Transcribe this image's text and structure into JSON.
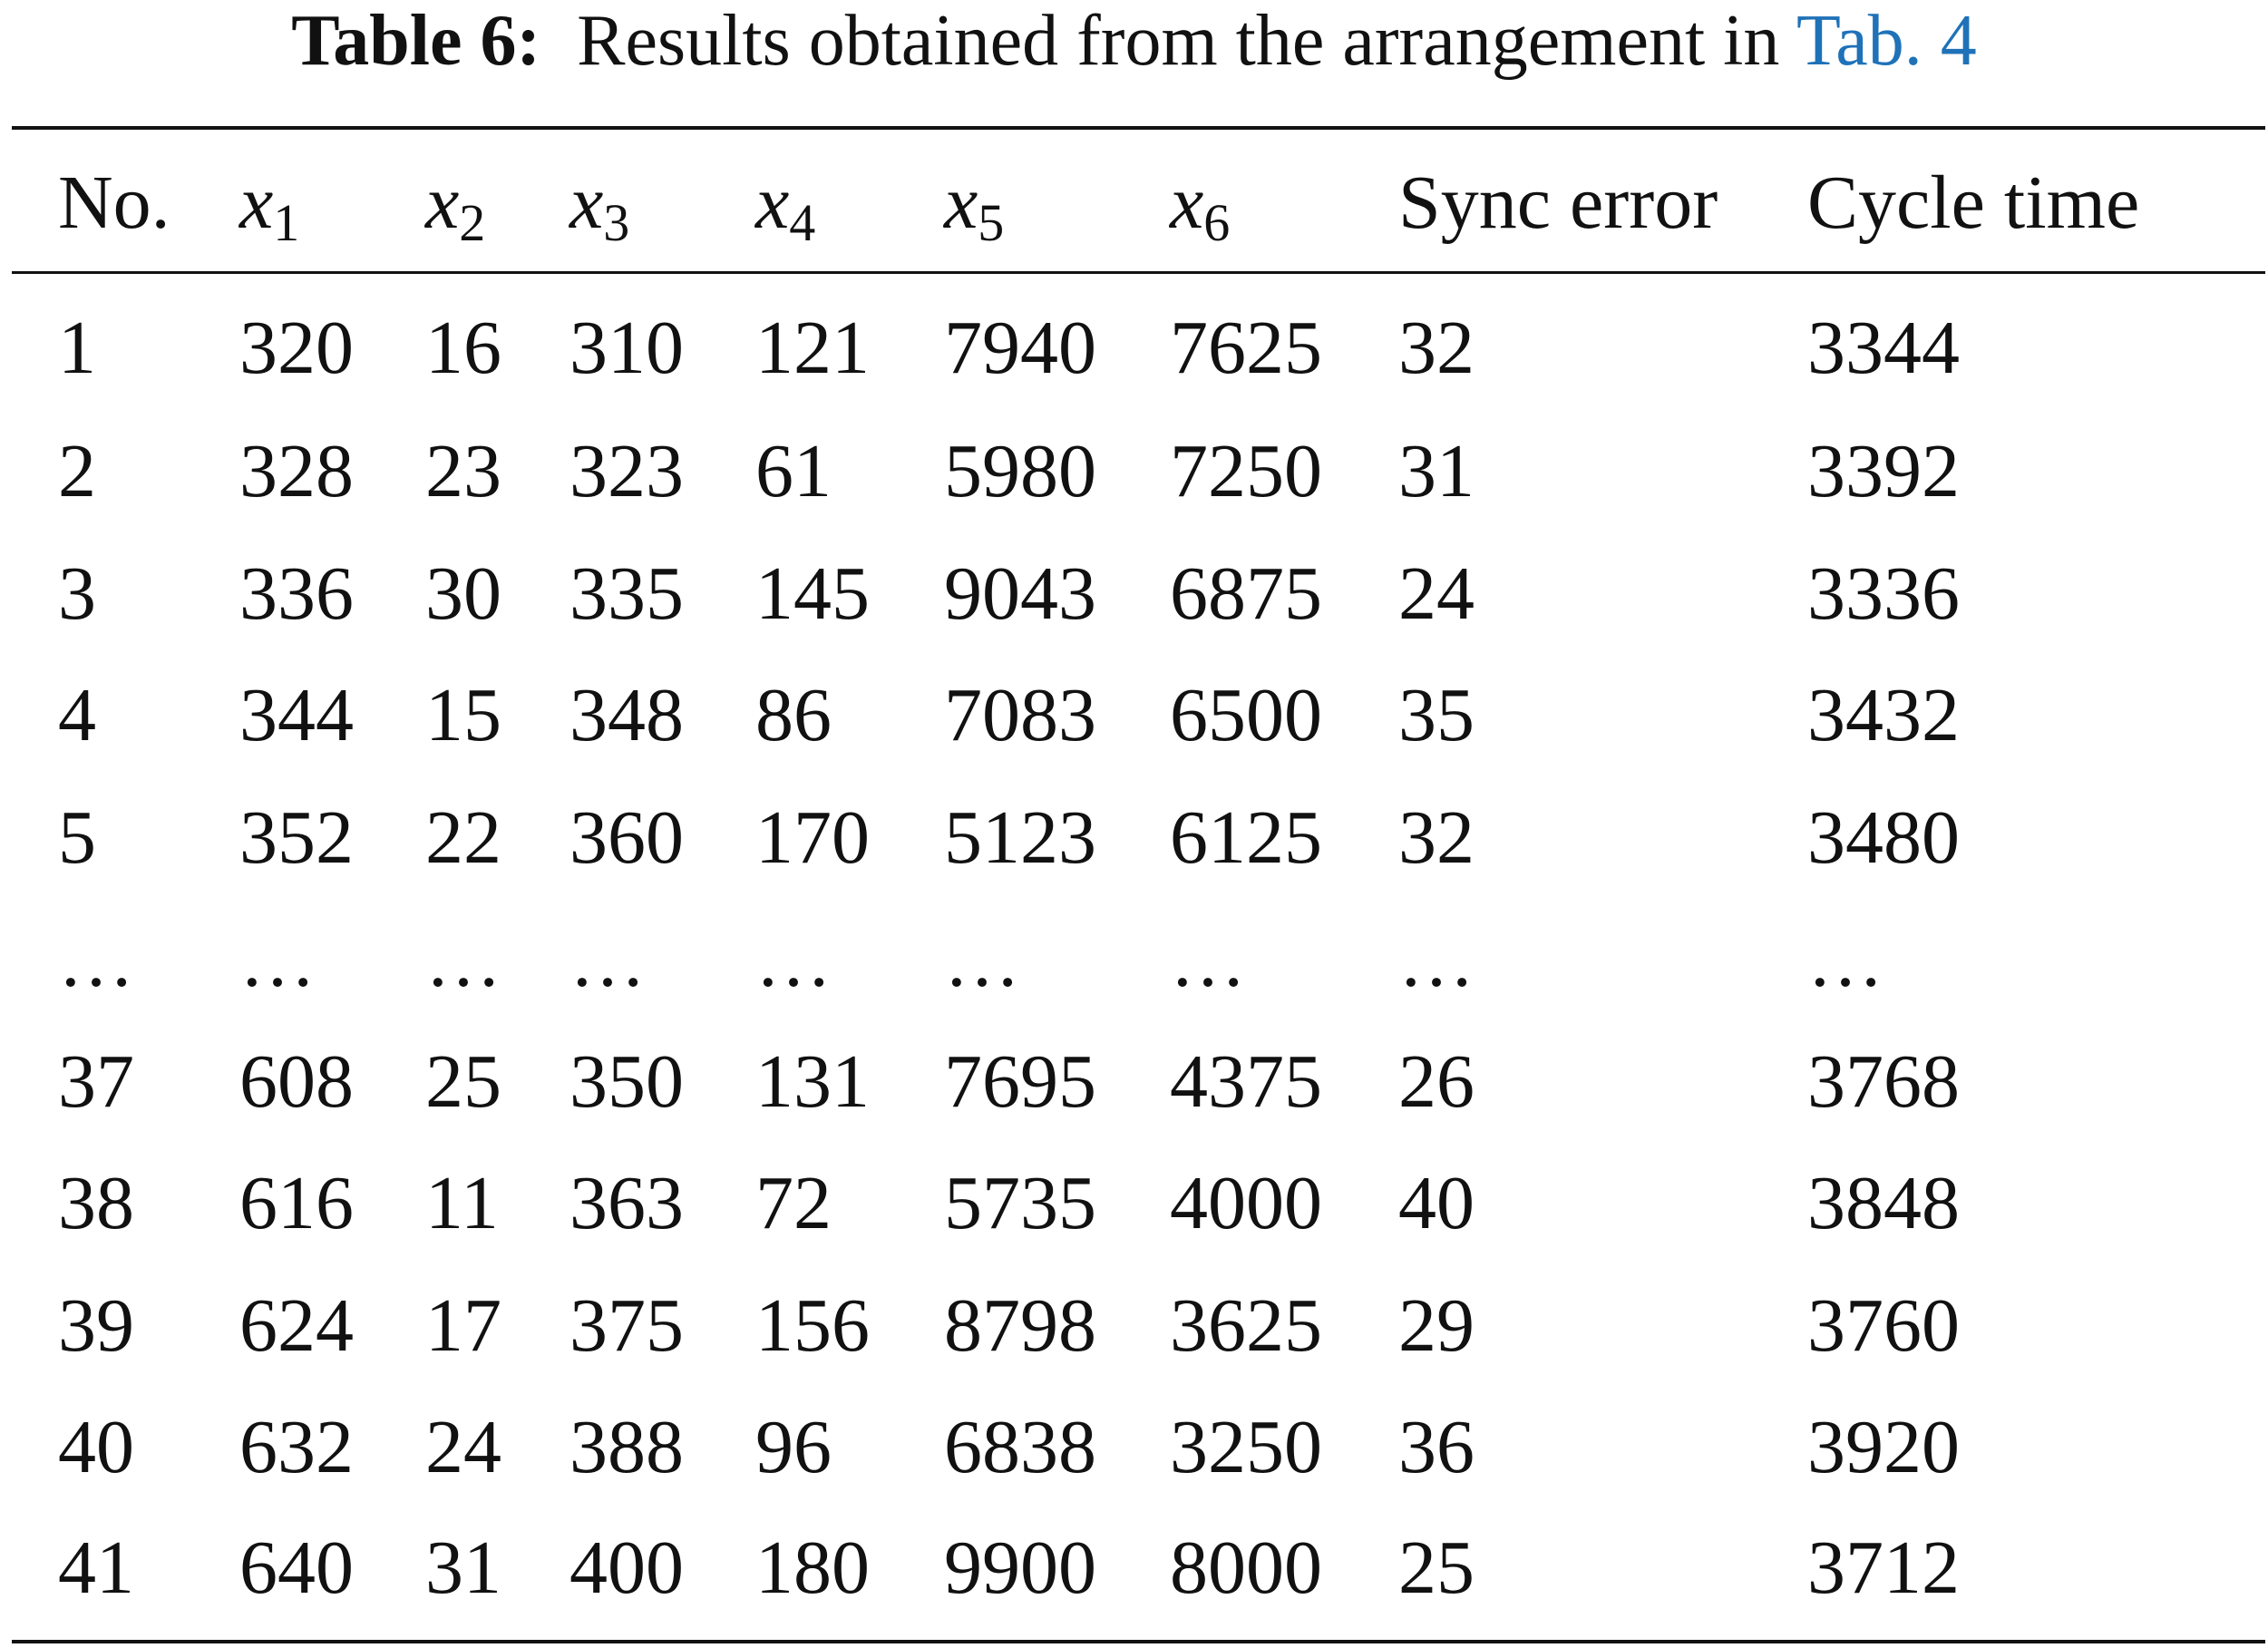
{
  "caption": {
    "label": "Table 6:",
    "text": "Results obtained from the arrangement in",
    "link": "Tab. 4"
  },
  "table": {
    "headers": [
      "No.",
      {
        "text": "x",
        "sub": "1"
      },
      {
        "text": "x",
        "sub": "2"
      },
      {
        "text": "x",
        "sub": "3"
      },
      {
        "text": "x",
        "sub": "4"
      },
      {
        "text": "x",
        "sub": "5"
      },
      {
        "text": "x",
        "sub": "6"
      },
      "Sync error",
      "Cycle time"
    ],
    "rows": [
      [
        1,
        320,
        16,
        310,
        121,
        7940,
        7625,
        32,
        3344
      ],
      [
        2,
        328,
        23,
        323,
        61,
        5980,
        7250,
        31,
        3392
      ],
      [
        3,
        336,
        30,
        335,
        145,
        9043,
        6875,
        24,
        3336
      ],
      [
        4,
        344,
        15,
        348,
        86,
        7083,
        6500,
        35,
        3432
      ],
      [
        5,
        352,
        22,
        360,
        170,
        5123,
        6125,
        32,
        3480
      ],
      [
        "…",
        "…",
        "…",
        "…",
        "…",
        "…",
        "…",
        "…",
        "…"
      ],
      [
        37,
        608,
        25,
        350,
        131,
        7695,
        4375,
        26,
        3768
      ],
      [
        38,
        616,
        11,
        363,
        72,
        5735,
        4000,
        40,
        3848
      ],
      [
        39,
        624,
        17,
        375,
        156,
        8798,
        3625,
        29,
        3760
      ],
      [
        40,
        632,
        24,
        388,
        96,
        6838,
        3250,
        36,
        3920
      ],
      [
        41,
        640,
        31,
        400,
        180,
        9900,
        8000,
        25,
        3712
      ]
    ]
  }
}
